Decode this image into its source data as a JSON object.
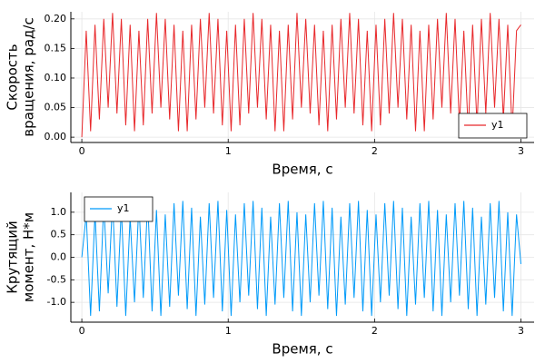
{
  "chart_data": [
    {
      "type": "line",
      "xlabel": "Время, с",
      "ylabel": [
        "Скорость",
        "вращения, рад/с"
      ],
      "xlim": [
        -0.075,
        3.09
      ],
      "ylim": [
        -0.009,
        0.212
      ],
      "xticks": [
        0,
        1,
        2,
        3
      ],
      "yticks": [
        {
          "value": 0,
          "label": "0.00"
        },
        {
          "value": 0.05,
          "label": "0.05"
        },
        {
          "value": 0.1,
          "label": "0.10"
        },
        {
          "value": 0.15,
          "label": "0.15"
        },
        {
          "value": 0.2,
          "label": "0.20"
        }
      ],
      "grid": true,
      "legend": "bottom-right",
      "x": [
        0,
        0.03,
        0.06,
        0.09,
        0.12,
        0.15,
        0.18,
        0.21,
        0.24,
        0.27,
        0.3,
        0.33,
        0.36,
        0.39,
        0.42,
        0.45,
        0.48,
        0.51,
        0.54,
        0.57,
        0.6,
        0.63,
        0.66,
        0.69,
        0.72,
        0.75,
        0.78,
        0.81,
        0.84,
        0.87,
        0.9,
        0.93,
        0.96,
        0.99,
        1.02,
        1.05,
        1.08,
        1.11,
        1.14,
        1.17,
        1.2,
        1.23,
        1.26,
        1.29,
        1.32,
        1.35,
        1.38,
        1.41,
        1.44,
        1.47,
        1.5,
        1.53,
        1.56,
        1.59,
        1.62,
        1.65,
        1.68,
        1.71,
        1.74,
        1.77,
        1.8,
        1.83,
        1.86,
        1.89,
        1.92,
        1.95,
        1.98,
        2.01,
        2.04,
        2.07,
        2.1,
        2.13,
        2.16,
        2.19,
        2.22,
        2.25,
        2.28,
        2.31,
        2.34,
        2.37,
        2.4,
        2.43,
        2.46,
        2.49,
        2.52,
        2.55,
        2.58,
        2.61,
        2.64,
        2.67,
        2.7,
        2.73,
        2.76,
        2.79,
        2.82,
        2.85,
        2.88,
        2.91,
        2.94,
        2.97,
        3.0
      ],
      "series": [
        {
          "name": "y1",
          "color": "#e8282b",
          "values": [
            0,
            0.18,
            0.01,
            0.19,
            0.03,
            0.2,
            0.05,
            0.21,
            0.04,
            0.2,
            0.02,
            0.19,
            0.01,
            0.18,
            0.02,
            0.2,
            0.04,
            0.21,
            0.05,
            0.2,
            0.03,
            0.19,
            0.01,
            0.18,
            0.01,
            0.19,
            0.03,
            0.2,
            0.05,
            0.21,
            0.04,
            0.2,
            0.02,
            0.18,
            0.01,
            0.19,
            0.02,
            0.2,
            0.04,
            0.21,
            0.05,
            0.2,
            0.03,
            0.19,
            0.01,
            0.18,
            0.01,
            0.19,
            0.03,
            0.21,
            0.05,
            0.2,
            0.04,
            0.19,
            0.02,
            0.18,
            0.01,
            0.19,
            0.03,
            0.2,
            0.05,
            0.21,
            0.04,
            0.2,
            0.02,
            0.18,
            0.01,
            0.19,
            0.02,
            0.2,
            0.04,
            0.21,
            0.05,
            0.2,
            0.03,
            0.19,
            0.01,
            0.18,
            0.01,
            0.19,
            0.03,
            0.2,
            0.05,
            0.21,
            0.04,
            0.2,
            0.02,
            0.18,
            0.01,
            0.19,
            0.02,
            0.2,
            0.04,
            0.21,
            0.05,
            0.2,
            0.03,
            0.19,
            0.01,
            0.18,
            0.19
          ]
        }
      ]
    },
    {
      "type": "line",
      "xlabel": "Время, с",
      "ylabel": [
        "Крутящий",
        "момент, Н*м"
      ],
      "xlim": [
        -0.075,
        3.09
      ],
      "ylim": [
        -1.44,
        1.44
      ],
      "xticks": [
        0,
        1,
        2,
        3
      ],
      "yticks": [
        {
          "value": -1,
          "label": "-1.0"
        },
        {
          "value": -0.5,
          "label": "-0.5"
        },
        {
          "value": 0,
          "label": "0.0"
        },
        {
          "value": 0.5,
          "label": "0.5"
        },
        {
          "value": 1,
          "label": "1.0"
        }
      ],
      "grid": true,
      "legend": "top-left",
      "x": [
        0,
        0.03,
        0.06,
        0.09,
        0.12,
        0.15,
        0.18,
        0.21,
        0.24,
        0.27,
        0.3,
        0.33,
        0.36,
        0.39,
        0.42,
        0.45,
        0.48,
        0.51,
        0.54,
        0.57,
        0.6,
        0.63,
        0.66,
        0.69,
        0.72,
        0.75,
        0.78,
        0.81,
        0.84,
        0.87,
        0.9,
        0.93,
        0.96,
        0.99,
        1.02,
        1.05,
        1.08,
        1.11,
        1.14,
        1.17,
        1.2,
        1.23,
        1.26,
        1.29,
        1.32,
        1.35,
        1.38,
        1.41,
        1.44,
        1.47,
        1.5,
        1.53,
        1.56,
        1.59,
        1.62,
        1.65,
        1.68,
        1.71,
        1.74,
        1.77,
        1.8,
        1.83,
        1.86,
        1.89,
        1.92,
        1.95,
        1.98,
        2.01,
        2.04,
        2.07,
        2.1,
        2.13,
        2.16,
        2.19,
        2.22,
        2.25,
        2.28,
        2.31,
        2.34,
        2.37,
        2.4,
        2.43,
        2.46,
        2.49,
        2.52,
        2.55,
        2.58,
        2.61,
        2.64,
        2.67,
        2.7,
        2.73,
        2.76,
        2.79,
        2.82,
        2.85,
        2.88,
        2.91,
        2.94,
        2.97,
        3.0
      ],
      "series": [
        {
          "name": "y1",
          "color": "#009af9",
          "values": [
            0,
            0.95,
            -1.3,
            1.0,
            -1.2,
            1.2,
            -0.8,
            1.25,
            -1.1,
            1.1,
            -1.3,
            0.9,
            -1.0,
            1.2,
            -0.9,
            1.25,
            -1.2,
            1.05,
            -1.3,
            0.95,
            -1.1,
            1.2,
            -0.85,
            1.25,
            -1.15,
            1.1,
            -1.3,
            0.9,
            -1.05,
            1.2,
            -0.9,
            1.25,
            -1.2,
            1.05,
            -1.3,
            0.95,
            -1.0,
            1.2,
            -0.85,
            1.25,
            -1.15,
            1.1,
            -1.3,
            0.9,
            -1.05,
            1.2,
            -0.9,
            1.25,
            -1.2,
            1.0,
            -1.3,
            0.95,
            -1.0,
            1.2,
            -0.85,
            1.25,
            -1.15,
            1.1,
            -1.3,
            0.9,
            -1.05,
            1.2,
            -0.9,
            1.25,
            -1.2,
            1.05,
            -1.3,
            0.95,
            -1.0,
            1.2,
            -0.85,
            1.25,
            -1.15,
            1.1,
            -1.3,
            0.9,
            -1.05,
            1.2,
            -0.9,
            1.25,
            -1.2,
            1.05,
            -1.3,
            0.95,
            -1.0,
            1.2,
            -0.85,
            1.25,
            -1.15,
            1.1,
            -1.3,
            0.9,
            -1.05,
            1.2,
            -0.9,
            1.25,
            -1.2,
            1.0,
            -1.3,
            0.95,
            -0.15
          ]
        }
      ]
    }
  ]
}
